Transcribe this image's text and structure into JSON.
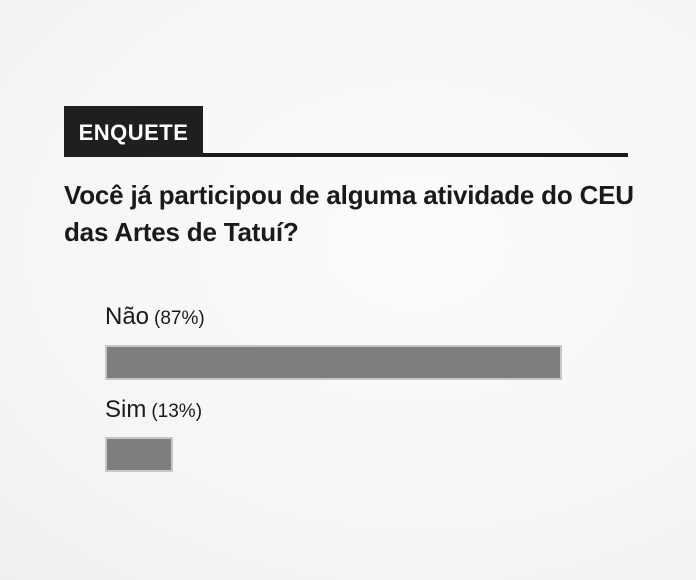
{
  "poll": {
    "header_label": "ENQUETE",
    "question": "Você já participou de alguma atividade do CEU das Artes de Tatuí?",
    "question_lines": [
      "Você já participou de alguma atividade do CEU",
      "das Artes de Tatuí?"
    ],
    "options": [
      {
        "label": "Não",
        "value": 87,
        "pct_display": "(87%)"
      },
      {
        "label": "Sim",
        "value": 13,
        "pct_display": "(13%)"
      }
    ]
  },
  "colors": {
    "badge_bg": "#1f1f1f",
    "badge_text": "#ffffff",
    "rule": "#1a1a1a",
    "text": "#1a1a1a",
    "bar_fill": "#7e7e7e",
    "bar_border": "#c7c7c7"
  },
  "chart_data": {
    "type": "bar",
    "orientation": "horizontal",
    "title": "Você já participou de alguma atividade do CEU das Artes de Tatuí?",
    "categories": [
      "Não",
      "Sim"
    ],
    "values": [
      87,
      13
    ],
    "unit": "%",
    "xlim": [
      0,
      100
    ],
    "bar_color": "#7e7e7e",
    "data_labels": [
      "(87%)",
      "(13%)"
    ],
    "legend": false,
    "grid": false
  }
}
